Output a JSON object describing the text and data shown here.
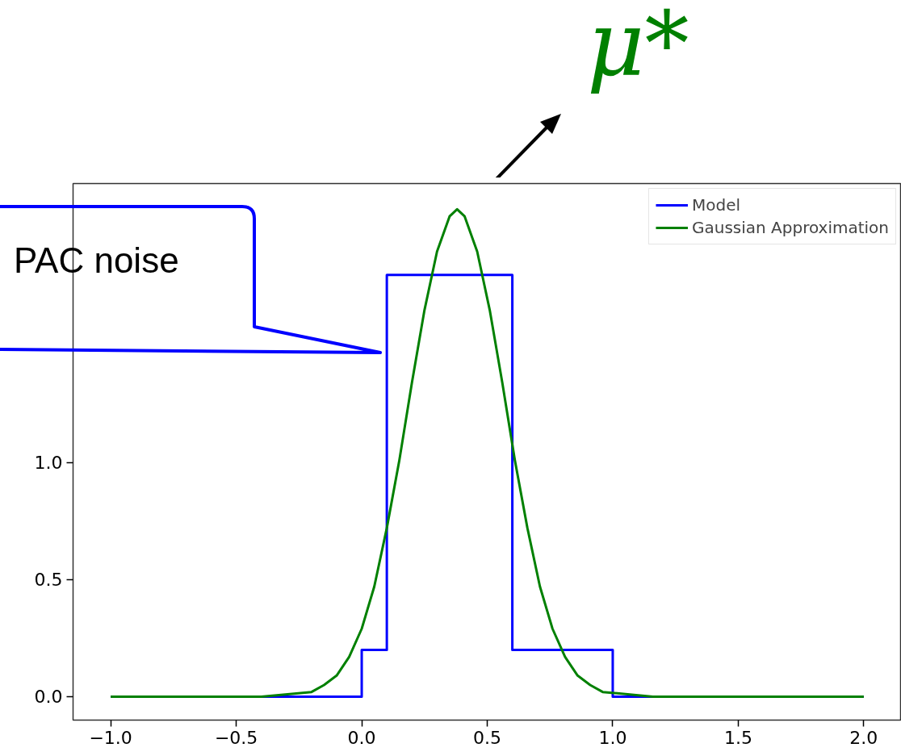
{
  "chart_data": {
    "type": "line",
    "xlim": [
      -1.15,
      2.15
    ],
    "ylim": [
      -0.1,
      2.19
    ],
    "xticks": [
      {
        "value": -1.0,
        "label": "−1.0"
      },
      {
        "value": -0.5,
        "label": "−0.5"
      },
      {
        "value": 0.0,
        "label": "0.0"
      },
      {
        "value": 0.5,
        "label": "0.5"
      },
      {
        "value": 1.0,
        "label": "1.0"
      },
      {
        "value": 1.5,
        "label": "1.5"
      },
      {
        "value": 2.0,
        "label": "2.0"
      }
    ],
    "yticks": [
      {
        "value": 0.0,
        "label": "0.0"
      },
      {
        "value": 0.5,
        "label": "0.5"
      },
      {
        "value": 1.0,
        "label": "1.0"
      }
    ],
    "grid": false,
    "legend": "top right",
    "series": [
      {
        "name": "Model",
        "type": "step",
        "color": "#0000ff",
        "x": [
          -1.0,
          0.0,
          0.1,
          0.6,
          1.0,
          2.0
        ],
        "values": [
          0,
          0.2,
          1.8,
          0.2,
          0,
          0
        ]
      },
      {
        "name": "Gaussian Approximation",
        "color": "#008000",
        "x": [
          -1.0,
          -0.4,
          -0.2,
          -0.15,
          -0.1,
          -0.05,
          0.0,
          0.05,
          0.1,
          0.15,
          0.2,
          0.25,
          0.3,
          0.35,
          0.38,
          0.41,
          0.46,
          0.51,
          0.56,
          0.61,
          0.66,
          0.71,
          0.76,
          0.81,
          0.86,
          0.91,
          0.96,
          1.16,
          2.0
        ],
        "values": [
          0,
          0,
          0.02,
          0.05,
          0.09,
          0.17,
          0.29,
          0.47,
          0.72,
          1.01,
          1.34,
          1.65,
          1.9,
          2.05,
          2.08,
          2.05,
          1.9,
          1.65,
          1.34,
          1.01,
          0.72,
          0.47,
          0.29,
          0.17,
          0.09,
          0.05,
          0.02,
          0,
          0
        ]
      }
    ],
    "annotations": [
      "μ*",
      "PAC noise"
    ]
  }
}
